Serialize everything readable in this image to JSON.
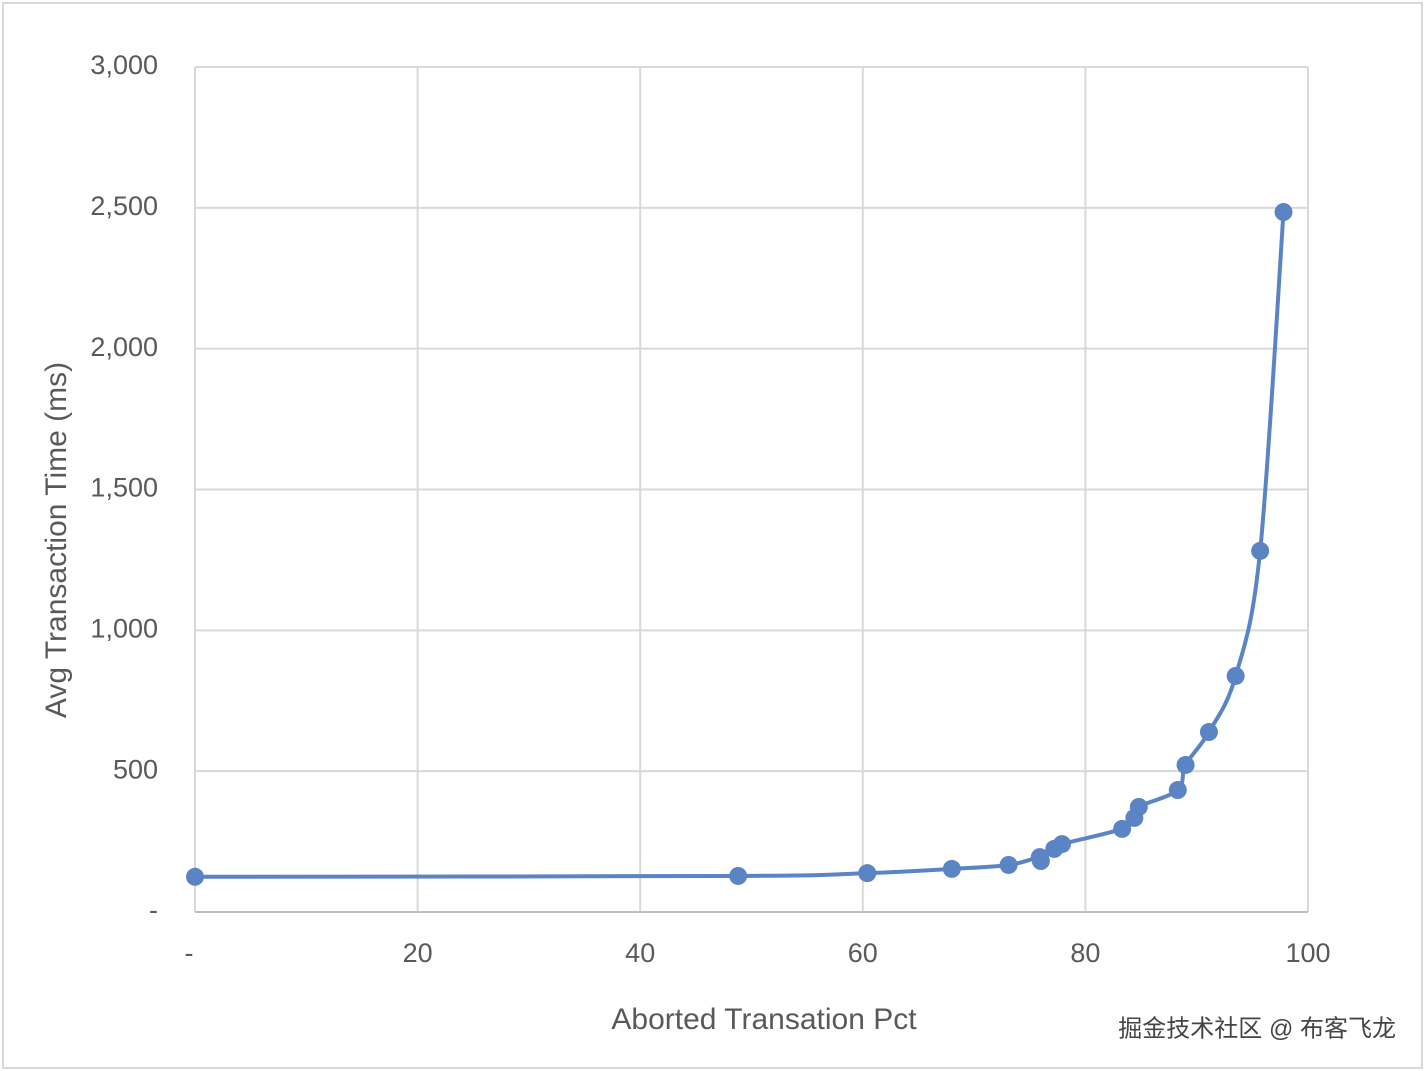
{
  "chart_data": {
    "type": "scatter",
    "xlabel": "Aborted Transation Pct",
    "ylabel": "Avg Transaction Time (ms)",
    "x": [
      0,
      48.8,
      60.4,
      68.0,
      73.1,
      75.9,
      76.0,
      77.2,
      77.9,
      83.3,
      84.4,
      84.8,
      88.3,
      89.0,
      91.1,
      93.5,
      95.7,
      97.8
    ],
    "values": [
      125,
      128,
      138,
      153,
      167,
      195,
      181,
      224,
      241,
      295,
      334,
      373,
      433,
      522,
      639,
      838,
      1282,
      2485
    ],
    "color": "#5b84c4",
    "xlim": [
      0,
      100
    ],
    "xticks": [
      {
        "value": 0,
        "label": "-"
      },
      20,
      40,
      60,
      80,
      100
    ],
    "ylim": [
      0,
      3000
    ],
    "yticks": [
      {
        "value": 0,
        "label": "-"
      },
      500,
      {
        "value": 1000,
        "label": "1,000"
      },
      {
        "value": 1500,
        "label": "1,500"
      },
      {
        "value": 2000,
        "label": "2,000"
      },
      {
        "value": 2500,
        "label": "2,500"
      },
      {
        "value": 3000,
        "label": "3,000"
      }
    ],
    "grid": true,
    "smooth": true
  },
  "watermark": "掘金技术社区 @ 布客飞龙"
}
